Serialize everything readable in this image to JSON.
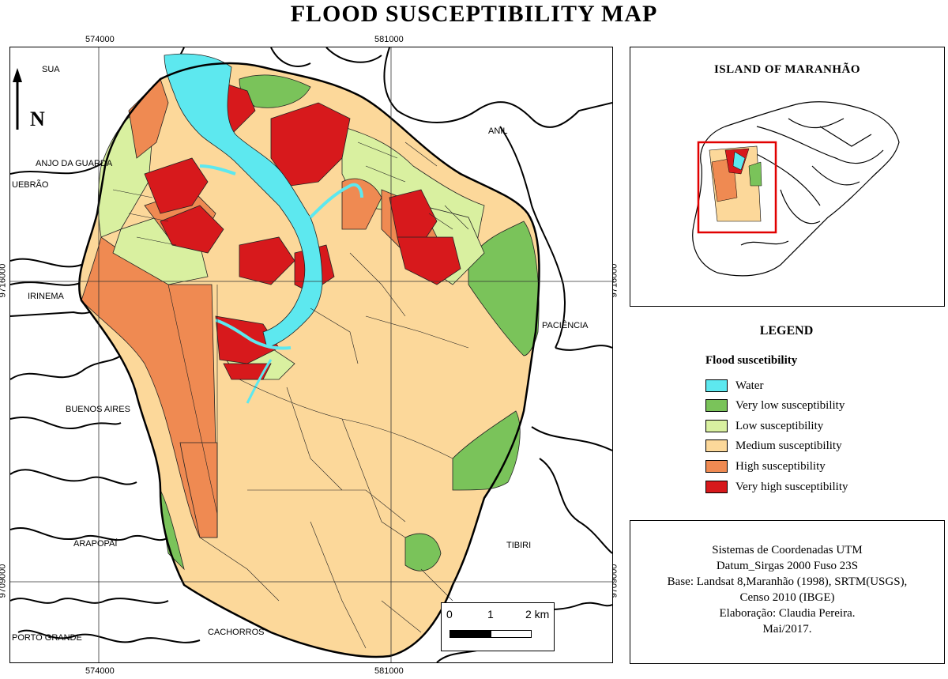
{
  "title": "FLOOD SUSCEPTIBILITY MAP",
  "coordinates": {
    "top_left": "574000",
    "top_right": "581000",
    "bottom_left": "574000",
    "bottom_right": "581000",
    "left_upper": "9716000",
    "left_lower": "9709000",
    "right_upper": "9716000",
    "right_lower": "9709000"
  },
  "north_arrow": {
    "label": "N"
  },
  "places": {
    "anil": "ANIL",
    "anjo_da_guarda": "ANJO DA GUARDA",
    "quebrao": "UEBRÃO",
    "irinema": "IRINEMA",
    "paciencia": "PACIÊNCIA",
    "buenos_aires": "BUENOS AIRES",
    "arapopai": "ARAPOPAÍ",
    "tibiri": "TIBIRI",
    "porto_grande": "PORTO GRANDE",
    "cachorros": "CACHORROS",
    "top_left_fragment": "SUA"
  },
  "scale_bar": {
    "l0": "0",
    "l1": "1",
    "l2": "2 km"
  },
  "inset": {
    "title": "ISLAND OF MARANHÃO"
  },
  "legend": {
    "title": "LEGEND",
    "subtitle": "Flood suscetibility",
    "items": [
      {
        "label": "Water",
        "color": "#5de8ef"
      },
      {
        "label": "Very low susceptibility",
        "color": "#7ac35a"
      },
      {
        "label": "Low susceptibility",
        "color": "#d9f0a0"
      },
      {
        "label": "Medium susceptibility",
        "color": "#fcd89a"
      },
      {
        "label": "High susceptibility",
        "color": "#ef8a52"
      },
      {
        "label": "Very high susceptibility",
        "color": "#d7191c"
      }
    ]
  },
  "credits": [
    "Sistemas de Coordenadas UTM",
    "Datum_Sirgas 2000 Fuso 23S",
    "Base: Landsat 8,Maranhão (1998), SRTM(USGS),",
    "Censo 2010 (IBGE)",
    "Elaboração: Claudia Pereira.",
    "Mai/2017."
  ]
}
